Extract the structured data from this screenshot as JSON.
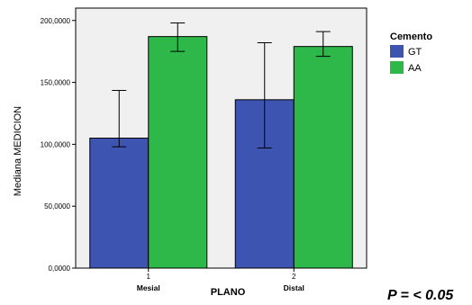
{
  "chart_data": {
    "type": "bar",
    "xlabel": "PLANO",
    "ylabel": "Mediana MEDICION",
    "ylim": [
      0,
      210000
    ],
    "yticks": [
      "0,0000",
      "50,0000",
      "100,0000",
      "150,0000",
      "200,0000"
    ],
    "ytick_values": [
      0,
      50000,
      100000,
      150000,
      200000
    ],
    "categories": [
      {
        "number": "1",
        "name": "Mesial"
      },
      {
        "number": "2",
        "name": "Distal"
      }
    ],
    "legend_title": "Cemento",
    "legend_position": "right",
    "grid": false,
    "series": [
      {
        "name": "GT",
        "color": "#3d55b0",
        "values": [
          105000,
          136000
        ],
        "err_low": [
          98000,
          97000
        ],
        "err_high": [
          143500,
          182000
        ]
      },
      {
        "name": "AA",
        "color": "#2eb84a",
        "values": [
          187000,
          179000
        ],
        "err_low": [
          175000,
          171000
        ],
        "err_high": [
          198000,
          191000
        ]
      }
    ],
    "annotation": "P = < 0.05",
    "plot_background": "#f0f0f0"
  }
}
